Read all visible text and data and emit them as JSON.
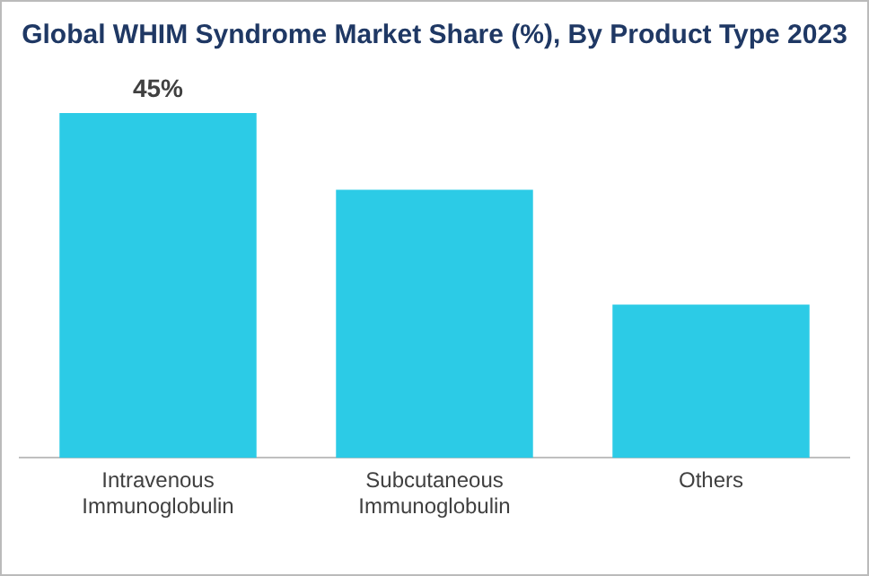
{
  "chart_data": {
    "type": "bar",
    "title": "Global WHIM Syndrome Market Share (%), By Product Type 2023",
    "categories": [
      "Intravenous Immunoglobulin",
      "Subcutaneous Immunoglobulin",
      "Others"
    ],
    "values": [
      45,
      35,
      20
    ],
    "value_labels": [
      "45%",
      null,
      null
    ],
    "color": "#2ccbe6",
    "grid": false,
    "legend": false,
    "tick_labels": "x"
  }
}
